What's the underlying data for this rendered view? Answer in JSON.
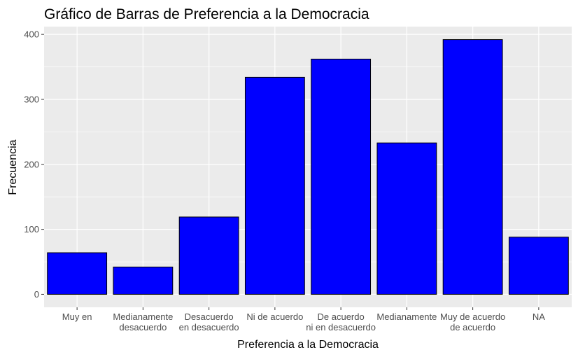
{
  "chart_data": {
    "type": "bar",
    "title": "Gráfico de Barras de Preferencia a la Democracia",
    "xlabel": "Preferencia a la Democracia",
    "ylabel": "Frecuencia",
    "categories": [
      [
        "Muy en"
      ],
      [
        "Medianamente",
        "desacuerdo"
      ],
      [
        "Desacuerdo",
        "en desacuerdo"
      ],
      [
        "Ni de acuerdo"
      ],
      [
        "De acuerdo",
        "ni en desacuerdo"
      ],
      [
        "Medianamente"
      ],
      [
        "Muy de acuerdo",
        "de acuerdo"
      ],
      [
        "NA"
      ]
    ],
    "values": [
      64,
      42,
      119,
      334,
      362,
      233,
      392,
      88
    ],
    "yticks": [
      0,
      100,
      200,
      300,
      400
    ],
    "ylim": [
      -20,
      412
    ],
    "grid": true,
    "bar_color": "#0000ff",
    "bar_outline": "#000000",
    "panel_background": "#ebebeb",
    "grid_color": "#ffffff"
  }
}
